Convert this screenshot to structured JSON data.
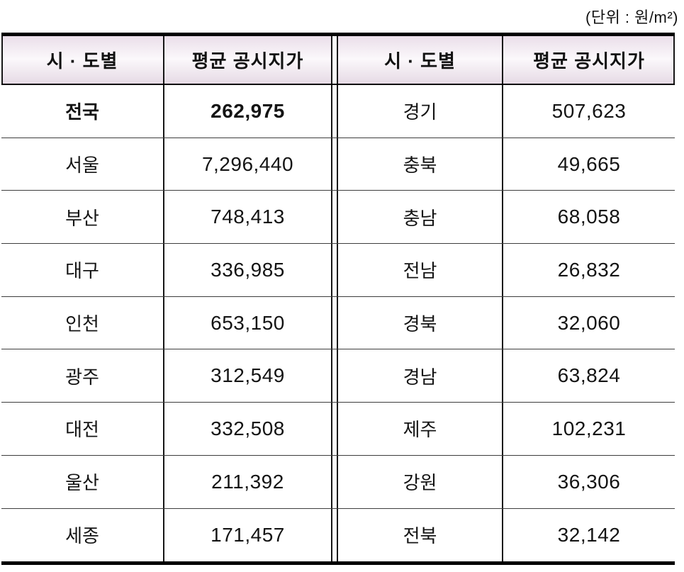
{
  "unit_label": "(단위 : 원/m²)",
  "table": {
    "headers": [
      "시 · 도별",
      "평균 공시지가",
      "시 · 도별",
      "평균 공시지가"
    ],
    "rows": [
      {
        "region_l": "전국",
        "value_l": "262,975",
        "region_r": "경기",
        "value_r": "507,623"
      },
      {
        "region_l": "서울",
        "value_l": "7,296,440",
        "region_r": "충북",
        "value_r": "49,665"
      },
      {
        "region_l": "부산",
        "value_l": "748,413",
        "region_r": "충남",
        "value_r": "68,058"
      },
      {
        "region_l": "대구",
        "value_l": "336,985",
        "region_r": "전남",
        "value_r": "26,832"
      },
      {
        "region_l": "인천",
        "value_l": "653,150",
        "region_r": "경북",
        "value_r": "32,060"
      },
      {
        "region_l": "광주",
        "value_l": "312,549",
        "region_r": "경남",
        "value_r": "63,824"
      },
      {
        "region_l": "대전",
        "value_l": "332,508",
        "region_r": "제주",
        "value_r": "102,231"
      },
      {
        "region_l": "울산",
        "value_l": "211,392",
        "region_r": "강원",
        "value_r": "36,306"
      },
      {
        "region_l": "세종",
        "value_l": "171,457",
        "region_r": "전북",
        "value_r": "32,142"
      }
    ],
    "colors": {
      "header_tint_top": "#eadee9",
      "header_tint_mid": "#fbf8fb",
      "header_tint_bottom": "#e6dae5",
      "border_thick": "#000000",
      "border_thin": "#3d3d3d",
      "text": "#141414"
    }
  }
}
